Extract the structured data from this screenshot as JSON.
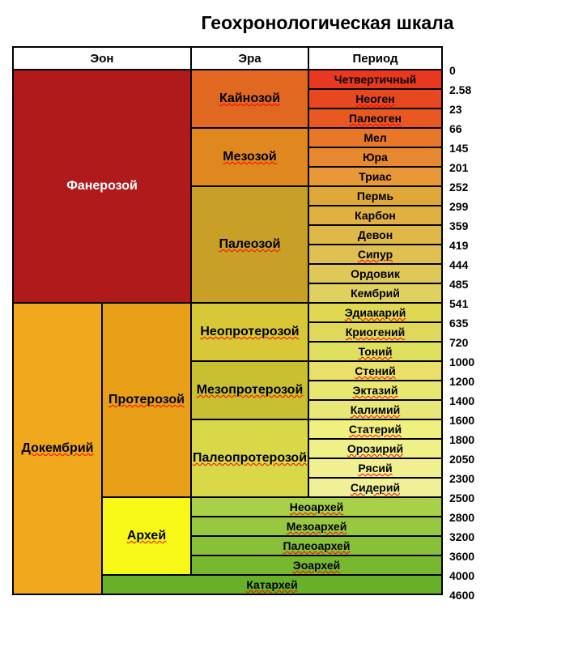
{
  "title": "Геохронологическая шкала",
  "headers": {
    "eon": "Эон",
    "era": "Эра",
    "period": "Период"
  },
  "times": [
    "0",
    "2.58",
    "23",
    "66",
    "145",
    "201",
    "252",
    "299",
    "359",
    "419",
    "444",
    "485",
    "541",
    "635",
    "720",
    "1000",
    "1200",
    "1400",
    "1600",
    "1800",
    "2050",
    "2300",
    "2500",
    "2800",
    "3200",
    "3600",
    "4000",
    "4600"
  ],
  "colors": {
    "phanerozoic": "#b01a1a",
    "precambrian": "#f0a81c",
    "proterozoic": "#e8a018",
    "archean": "#f8f818",
    "cenozoic": "#e06820",
    "mesozoic": "#e08820",
    "paleozoic": "#c8a028",
    "neoprot": "#d8c838",
    "mesoprot": "#c8c030",
    "paleoprot": "#d8d848",
    "q": "#e83820",
    "ng": "#e84820",
    "pg": "#e85820",
    "k": "#e87828",
    "j": "#e88830",
    "tr": "#e89838",
    "p": "#e0a838",
    "c": "#e0b040",
    "d": "#e0b848",
    "s": "#e0c050",
    "o": "#e0c858",
    "cm": "#e0d060",
    "edia": "#e0d850",
    "cryo": "#e0d858",
    "tonian": "#e0e060",
    "sten": "#e8e068",
    "ecta": "#e8e870",
    "cali": "#e8e878",
    "stat": "#f0f080",
    "oro": "#f0f088",
    "rhya": "#f0f090",
    "sid": "#f0f098",
    "neoarch": "#a8d048",
    "mesoarch": "#98c840",
    "paleoarch": "#88c038",
    "eoarch": "#78b830",
    "hadean": "#68b028"
  },
  "labels": {
    "phanerozoic": "Фанерозой",
    "precambrian": "Докембрий",
    "proterozoic": "Протерозой",
    "archean": "Архей",
    "cenozoic": "Кайнозой",
    "mesozoic": "Мезозой",
    "paleozoic": "Палеозой",
    "neoprot": "Неопротерозой",
    "mesoprot": "Мезопротерозой",
    "paleoprot": "Палеопротерозой",
    "hadean": "Катархей",
    "neoarch": "Неоархей",
    "mesoarch": "Мезоархей",
    "paleoarch": "Палеоархей",
    "eoarch": "Эоархей",
    "q": "Четвертичный",
    "ng": "Неоген",
    "pg": "Палеоген",
    "k": "Мел",
    "j": "Юра",
    "tr": "Триас",
    "p": "Пермь",
    "c": "Карбон",
    "d": "Девон",
    "s": "Сипур",
    "o": "Ордовик",
    "cm": "Кембрий",
    "edia": "Эдиакарий",
    "cryo": "Криогений",
    "tonian": "Тоний",
    "sten": "Стений",
    "ecta": "Эктазий",
    "cali": "Калимий",
    "stat": "Статерий",
    "oro": "Орозирий",
    "rhya": "Рясий",
    "sid": "Сидерий"
  }
}
